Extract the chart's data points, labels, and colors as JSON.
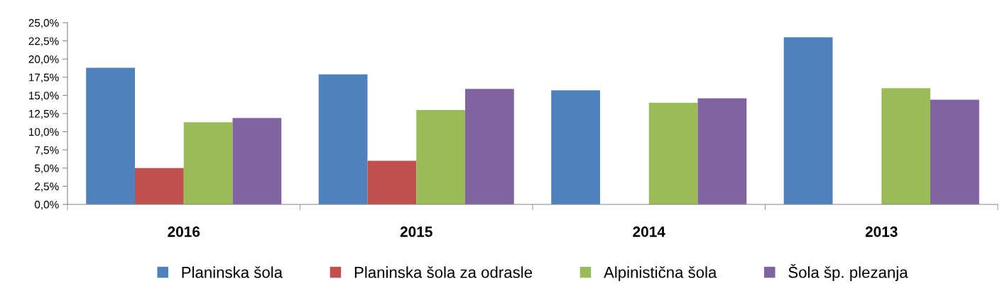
{
  "chart_data": {
    "type": "bar",
    "categories": [
      "2016",
      "2015",
      "2014",
      "2013"
    ],
    "series": [
      {
        "name": "Planinska šola",
        "color": "#4f81bd",
        "values": [
          18.8,
          17.9,
          15.7,
          23.0
        ]
      },
      {
        "name": "Planinska šola za odrasle",
        "color": "#c0504d",
        "values": [
          5.0,
          6.0,
          null,
          null
        ]
      },
      {
        "name": "Alpinistična šola",
        "color": "#9bbb59",
        "values": [
          11.3,
          13.0,
          14.0,
          16.0
        ]
      },
      {
        "name": "Šola šp. plezanja",
        "color": "#8064a2",
        "values": [
          11.9,
          15.9,
          14.6,
          14.4
        ]
      }
    ],
    "ylim": [
      0,
      25
    ],
    "yticks": [
      {
        "value": 0,
        "label": "0,0%"
      },
      {
        "value": 2.5,
        "label": "2,5%"
      },
      {
        "value": 5,
        "label": "5,0%"
      },
      {
        "value": 7.5,
        "label": "7,5%"
      },
      {
        "value": 10,
        "label": "10,0%"
      },
      {
        "value": 12.5,
        "label": "12,5%"
      },
      {
        "value": 15,
        "label": "15,0%"
      },
      {
        "value": 17.5,
        "label": "17,5%"
      },
      {
        "value": 20,
        "label": "20,0%"
      },
      {
        "value": 22.5,
        "label": "22,5%"
      },
      {
        "value": 25,
        "label": "25,0%"
      }
    ],
    "grid": false,
    "legend": "bottom"
  }
}
